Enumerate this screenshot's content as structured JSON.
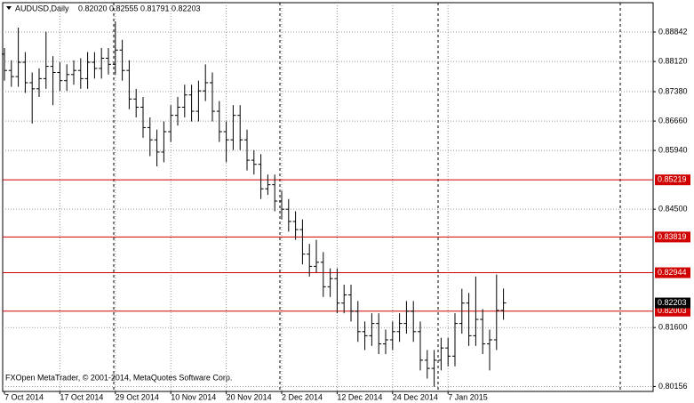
{
  "chart_data": {
    "type": "ohlc",
    "symbol": "AUDUSD,Daily",
    "header_labels": [
      "0.82020",
      "0.82555",
      "0.81791",
      "0.82203"
    ],
    "copyright": "FXOpen MetaTrader, © 2001-2014, MetaQuotes Software Corp.",
    "categories": [
      "7 Oct 2014",
      null,
      null,
      null,
      null,
      null,
      null,
      null,
      "17 Oct 2014",
      null,
      null,
      null,
      null,
      null,
      null,
      null,
      "29 Oct 2014",
      null,
      null,
      null,
      null,
      null,
      null,
      null,
      "10 Nov 2014",
      null,
      null,
      null,
      null,
      null,
      null,
      null,
      "20 Nov 2014",
      null,
      null,
      null,
      null,
      null,
      null,
      null,
      "2 Dec 2014",
      null,
      null,
      null,
      null,
      null,
      null,
      null,
      "12 Dec 2014",
      null,
      null,
      null,
      null,
      null,
      null,
      null,
      "24 Dec 2014",
      null,
      null,
      null,
      null,
      null,
      null,
      null,
      "7 Jan 2015",
      null,
      null,
      null,
      null,
      null,
      null,
      null,
      null
    ],
    "ohlc": [
      [
        0.883,
        0.8845,
        0.8765,
        0.879
      ],
      [
        0.879,
        0.8815,
        0.875,
        0.8775
      ],
      [
        0.8775,
        0.8895,
        0.875,
        0.881
      ],
      [
        0.881,
        0.8835,
        0.8735,
        0.876
      ],
      [
        0.876,
        0.8785,
        0.866,
        0.8745
      ],
      [
        0.8745,
        0.8795,
        0.8725,
        0.877
      ],
      [
        0.877,
        0.8885,
        0.8745,
        0.88
      ],
      [
        0.88,
        0.8825,
        0.8705,
        0.8785
      ],
      [
        0.8785,
        0.881,
        0.874,
        0.8765
      ],
      [
        0.8765,
        0.8805,
        0.874,
        0.878
      ],
      [
        0.878,
        0.8815,
        0.8755,
        0.879
      ],
      [
        0.879,
        0.882,
        0.8745,
        0.877
      ],
      [
        0.877,
        0.8835,
        0.8745,
        0.881
      ],
      [
        0.881,
        0.8835,
        0.877,
        0.8795
      ],
      [
        0.8795,
        0.8845,
        0.877,
        0.882
      ],
      [
        0.882,
        0.8845,
        0.878,
        0.8805
      ],
      [
        0.8805,
        0.891,
        0.878,
        0.884
      ],
      [
        0.884,
        0.8865,
        0.8765,
        0.879
      ],
      [
        0.879,
        0.8815,
        0.8695,
        0.872
      ],
      [
        0.872,
        0.8745,
        0.8675,
        0.87
      ],
      [
        0.87,
        0.8725,
        0.8625,
        0.865
      ],
      [
        0.865,
        0.8675,
        0.858,
        0.862
      ],
      [
        0.862,
        0.8645,
        0.8555,
        0.859
      ],
      [
        0.859,
        0.8665,
        0.8565,
        0.864
      ],
      [
        0.864,
        0.8705,
        0.8615,
        0.868
      ],
      [
        0.868,
        0.8725,
        0.8655,
        0.87
      ],
      [
        0.87,
        0.8755,
        0.8675,
        0.873
      ],
      [
        0.873,
        0.8755,
        0.8665,
        0.869
      ],
      [
        0.869,
        0.8765,
        0.8665,
        0.874
      ],
      [
        0.874,
        0.8805,
        0.8715,
        0.876
      ],
      [
        0.876,
        0.8785,
        0.8665,
        0.869
      ],
      [
        0.869,
        0.8715,
        0.8615,
        0.864
      ],
      [
        0.864,
        0.8665,
        0.8565,
        0.862
      ],
      [
        0.862,
        0.8705,
        0.8595,
        0.868
      ],
      [
        0.868,
        0.8705,
        0.8595,
        0.862
      ],
      [
        0.862,
        0.8645,
        0.8545,
        0.857
      ],
      [
        0.857,
        0.8595,
        0.8535,
        0.856
      ],
      [
        0.856,
        0.8585,
        0.8475,
        0.85
      ],
      [
        0.85,
        0.8535,
        0.8485,
        0.851
      ],
      [
        0.851,
        0.8535,
        0.8445,
        0.847
      ],
      [
        0.847,
        0.8495,
        0.8425,
        0.845
      ],
      [
        0.845,
        0.8475,
        0.8395,
        0.842
      ],
      [
        0.842,
        0.8445,
        0.8375,
        0.84
      ],
      [
        0.84,
        0.8425,
        0.8315,
        0.834
      ],
      [
        0.834,
        0.8365,
        0.8285,
        0.831
      ],
      [
        0.831,
        0.8375,
        0.8295,
        0.832
      ],
      [
        0.832,
        0.8345,
        0.8235,
        0.826
      ],
      [
        0.826,
        0.8305,
        0.8235,
        0.828
      ],
      [
        0.828,
        0.8305,
        0.8195,
        0.822
      ],
      [
        0.822,
        0.8265,
        0.8195,
        0.824
      ],
      [
        0.824,
        0.8265,
        0.8175,
        0.82
      ],
      [
        0.82,
        0.8225,
        0.8125,
        0.815
      ],
      [
        0.815,
        0.8175,
        0.8105,
        0.814
      ],
      [
        0.814,
        0.8195,
        0.8115,
        0.817
      ],
      [
        0.817,
        0.8195,
        0.8095,
        0.812
      ],
      [
        0.812,
        0.8155,
        0.8095,
        0.813
      ],
      [
        0.813,
        0.8175,
        0.8105,
        0.815
      ],
      [
        0.815,
        0.8195,
        0.8125,
        0.817
      ],
      [
        0.817,
        0.8225,
        0.8145,
        0.82
      ],
      [
        0.82,
        0.8225,
        0.8125,
        0.815
      ],
      [
        0.815,
        0.8175,
        0.8055,
        0.808
      ],
      [
        0.808,
        0.8105,
        0.8035,
        0.806
      ],
      [
        0.806,
        0.8105,
        0.8015,
        0.808
      ],
      [
        0.808,
        0.8135,
        0.8055,
        0.811
      ],
      [
        0.811,
        0.8135,
        0.8065,
        0.809
      ],
      [
        0.809,
        0.8195,
        0.8065,
        0.817
      ],
      [
        0.817,
        0.8255,
        0.8145,
        0.822
      ],
      [
        0.822,
        0.8245,
        0.8115,
        0.814
      ],
      [
        0.814,
        0.8285,
        0.8115,
        0.818
      ],
      [
        0.818,
        0.8205,
        0.8095,
        0.812
      ],
      [
        0.812,
        0.8155,
        0.8055,
        0.813
      ],
      [
        0.813,
        0.829,
        0.8105,
        0.8202
      ],
      [
        0.8202,
        0.82555,
        0.81791,
        0.82203
      ]
    ],
    "levels": [
      {
        "value": 0.85219,
        "label": "0.85219"
      },
      {
        "value": 0.83819,
        "label": "0.83819"
      },
      {
        "value": 0.82944,
        "label": "0.82944"
      },
      {
        "value": 0.82003,
        "label": "0.82003"
      }
    ],
    "last_price": {
      "value": 0.82203,
      "label": "0.82203"
    },
    "ylim": [
      0.80035,
      0.89561
    ],
    "yticks": [
      0.88842,
      {
        "value": 0.8812,
        "label": "0.88120"
      },
      {
        "value": 0.8738,
        "label": "0.87380"
      },
      {
        "value": 0.8666,
        "label": "0.86660"
      },
      {
        "value": 0.8594,
        "label": "0.85940"
      },
      {
        "value": 0.845,
        "label": "0.84500"
      },
      {
        "value": 0.816,
        "label": "0.81600"
      },
      0.80156
    ],
    "grid": true,
    "bar_color": "#000000",
    "level_color": "#d00000"
  }
}
